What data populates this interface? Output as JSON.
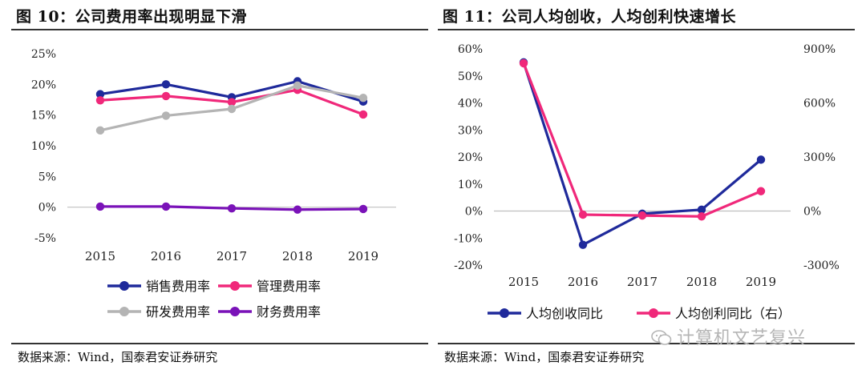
{
  "figures": [
    {
      "title": "图 10：公司费用率出现明显下滑",
      "source": "数据来源：Wind，国泰君安证券研究"
    },
    {
      "title": "图 11：公司人均创收，人均创利快速增长",
      "source": "数据来源：Wind，国泰君安证券研究"
    }
  ],
  "watermark": "计算机文艺复兴",
  "chart_data": [
    {
      "type": "line",
      "title": "图 10：公司费用率出现明显下滑",
      "categories": [
        "2015",
        "2016",
        "2017",
        "2018",
        "2019"
      ],
      "y_ticks": [
        -0.05,
        0,
        0.05,
        0.1,
        0.15,
        0.2,
        0.25
      ],
      "y_tick_labels": [
        "-5%",
        "0%",
        "5%",
        "10%",
        "15%",
        "20%",
        "25%"
      ],
      "ylim": [
        -0.05,
        0.25
      ],
      "legend_position": "bottom",
      "series": [
        {
          "name": "销售费用率",
          "color": "#1f2a9b",
          "values": [
            0.184,
            0.2,
            0.179,
            0.205,
            0.172
          ]
        },
        {
          "name": "管理费用率",
          "color": "#f0287a",
          "values": [
            0.174,
            0.181,
            0.171,
            0.191,
            0.151
          ]
        },
        {
          "name": "研发费用率",
          "color": "#b4b4b4",
          "values": [
            0.125,
            0.149,
            0.16,
            0.198,
            0.178
          ]
        },
        {
          "name": "财务费用率",
          "color": "#7a12b8",
          "values": [
            0.001,
            0.001,
            -0.002,
            -0.004,
            -0.003
          ]
        }
      ]
    },
    {
      "type": "line",
      "title": "图 11：公司人均创收，人均创利快速增长",
      "categories": [
        "2015",
        "2016",
        "2017",
        "2018",
        "2019"
      ],
      "y_ticks": [
        -0.2,
        -0.1,
        0,
        0.1,
        0.2,
        0.3,
        0.4,
        0.5,
        0.6
      ],
      "y_tick_labels": [
        "-20%",
        "-10%",
        "0%",
        "10%",
        "20%",
        "30%",
        "40%",
        "50%",
        "60%"
      ],
      "ylim": [
        -0.2,
        0.6
      ],
      "y2_ticks": [
        -3,
        0,
        3,
        6,
        9
      ],
      "y2_tick_labels": [
        "-300%",
        "0%",
        "300%",
        "600%",
        "900%"
      ],
      "y2lim": [
        -3,
        9
      ],
      "legend_position": "bottom",
      "series": [
        {
          "name": "人均创收同比",
          "color": "#1f2a9b",
          "axis": "left",
          "values": [
            0.55,
            -0.125,
            -0.01,
            0.005,
            0.19
          ]
        },
        {
          "name": "人均创利同比（右）",
          "color": "#f0287a",
          "axis": "right",
          "values": [
            8.2,
            -0.2,
            -0.25,
            -0.3,
            1.1
          ]
        }
      ]
    }
  ]
}
